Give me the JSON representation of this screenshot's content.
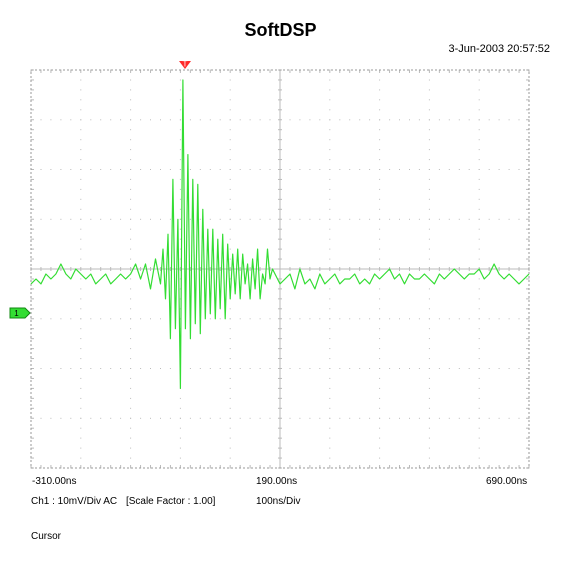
{
  "title": "SoftDSP",
  "timestamp": "3-Jun-2003 20:57:52",
  "channel_marker": "1",
  "trigger_marker": "T",
  "x_tick_labels": [
    "-310.00ns",
    "190.00ns",
    "690.00ns"
  ],
  "info": {
    "channel": "Ch1 : 10mV/Div  AC",
    "scale_factor": "[Scale Factor : 1.00]",
    "timebase": "100ns/Div"
  },
  "cursor_label": "Cursor",
  "colors": {
    "trace": "#33dd33",
    "grid_dots": "#bbbbbb",
    "border": "#999999",
    "axis": "#bbbbbb",
    "channel_marker": "#33dd33",
    "trigger_marker": "#ff2a2a"
  },
  "chart_data": {
    "type": "line",
    "xunit": "ns",
    "yunit": "mV",
    "xlim": [
      -310,
      690
    ],
    "ylim": [
      -40,
      40
    ],
    "grid": true,
    "x_div": 10,
    "y_div": 8,
    "series": [
      {
        "x": [
          -310,
          -300,
          -290,
          -280,
          -270,
          -260,
          -250,
          -240,
          -230,
          -220,
          -210,
          -200,
          -190,
          -180,
          -170,
          -160,
          -150,
          -140,
          -130,
          -120,
          -110,
          -100,
          -90,
          -80,
          -70,
          -60,
          -50,
          -45,
          -40,
          -35,
          -30,
          -25,
          -20,
          -15,
          -10,
          -5,
          0,
          5,
          10,
          15,
          20,
          25,
          30,
          35,
          40,
          45,
          50,
          55,
          60,
          65,
          70,
          75,
          80,
          85,
          90,
          95,
          100,
          105,
          110,
          115,
          120,
          125,
          130,
          135,
          140,
          145,
          150,
          155,
          160,
          165,
          170,
          175,
          180,
          190,
          200,
          210,
          220,
          230,
          240,
          250,
          260,
          270,
          280,
          290,
          300,
          310,
          320,
          330,
          340,
          350,
          360,
          370,
          380,
          390,
          400,
          410,
          420,
          430,
          440,
          450,
          460,
          470,
          480,
          490,
          500,
          510,
          520,
          530,
          540,
          550,
          560,
          570,
          580,
          590,
          600,
          610,
          620,
          630,
          640,
          650,
          660,
          670,
          680,
          690
        ],
        "values": [
          -3,
          -2,
          -3,
          -1,
          -2,
          -1,
          1,
          -1,
          -2,
          0,
          -1,
          -2,
          -1,
          -3,
          -2,
          -1,
          -3,
          -2,
          -1,
          -2,
          -1,
          1,
          -2,
          1,
          -4,
          2,
          -3,
          4,
          -6,
          7,
          -14,
          18,
          -12,
          10,
          -24,
          38,
          -12,
          23,
          -14,
          18,
          -11,
          17,
          -13,
          12,
          -10,
          8,
          -9,
          8,
          -10,
          6,
          -8,
          7,
          -10,
          5,
          -6,
          3,
          -5,
          4,
          -6,
          3,
          -3,
          1,
          -6,
          2,
          -4,
          4,
          -6,
          -1,
          -3,
          4,
          -2,
          0,
          -1,
          -3,
          -2,
          -1,
          -4,
          0,
          -3,
          -2,
          -4,
          -1,
          -3,
          -2,
          -1,
          -3,
          -2,
          -2,
          -1,
          -3,
          -2,
          -3,
          -1,
          -2,
          -1,
          0,
          -2,
          -1,
          -3,
          -1,
          -2,
          -2,
          -1,
          -2,
          -3,
          -1,
          -2,
          -1,
          0,
          -1,
          -2,
          -1,
          -1,
          0,
          -2,
          -1,
          1,
          -1,
          -2,
          -1,
          -2,
          -3,
          -2,
          -1
        ]
      }
    ]
  }
}
